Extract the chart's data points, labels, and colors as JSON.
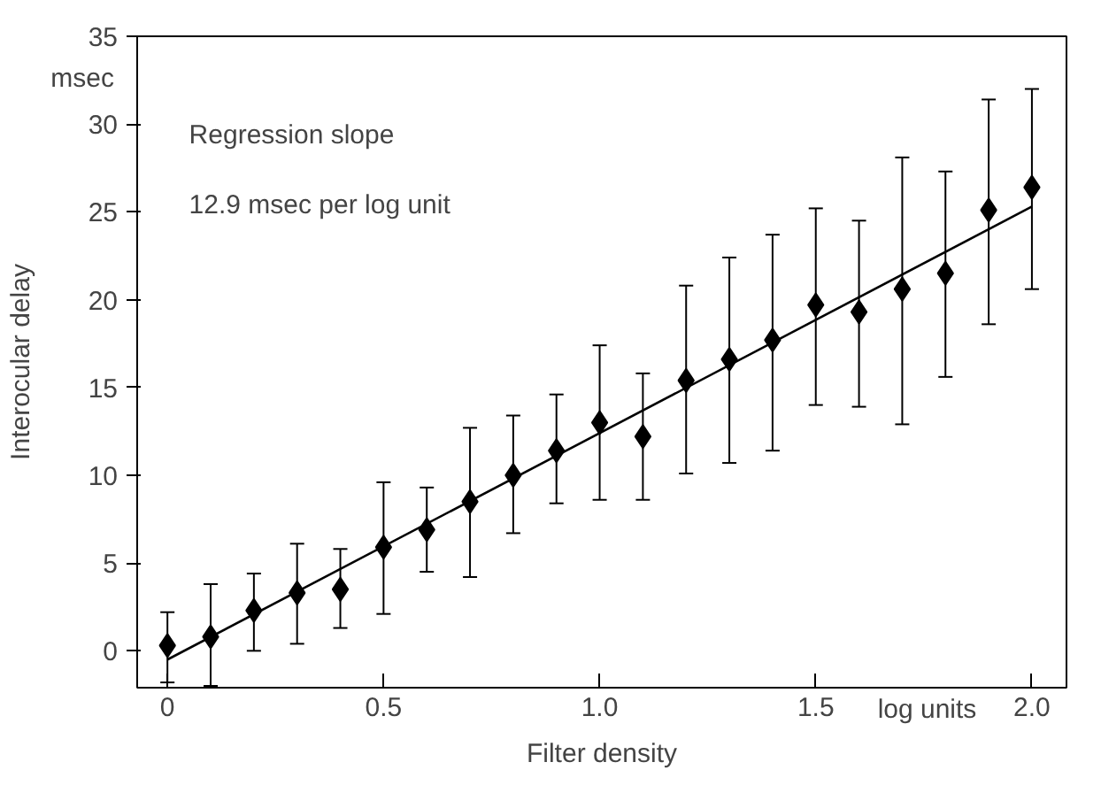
{
  "chart_data": {
    "type": "scatter",
    "xlabel": "Filter density",
    "ylabel": "Interocular delay",
    "annotations": [
      "Regression slope\n12.9 msec per log unit",
      "msec",
      "log units"
    ],
    "x": [
      0,
      0.1,
      0.2,
      0.3,
      0.4,
      0.5,
      0.6,
      0.7,
      0.8,
      0.9,
      1.0,
      1.1,
      1.2,
      1.3,
      1.4,
      1.5,
      1.6,
      1.7,
      1.8,
      1.9,
      2.0
    ],
    "series": [
      {
        "color": "#000000",
        "marker": "diamond",
        "values": [
          0.3,
          0.8,
          2.3,
          3.3,
          3.5,
          5.9,
          6.9,
          8.5,
          10.0,
          11.4,
          13.0,
          12.2,
          15.4,
          16.6,
          17.7,
          19.7,
          19.3,
          20.6,
          21.5,
          25.1,
          26.4
        ],
        "errors": [
          [
            -1.8,
            2.2
          ],
          [
            -2.0,
            3.8
          ],
          [
            0,
            4.4
          ],
          [
            0.4,
            6.1
          ],
          [
            1.3,
            5.8
          ],
          [
            2.1,
            9.6
          ],
          [
            4.5,
            9.3
          ],
          [
            4.2,
            12.7
          ],
          [
            6.7,
            13.4
          ],
          [
            8.4,
            14.6
          ],
          [
            8.6,
            17.4
          ],
          [
            8.6,
            15.8
          ],
          [
            10.1,
            20.8
          ],
          [
            10.7,
            22.4
          ],
          [
            11.4,
            23.7
          ],
          [
            14.0,
            25.2
          ],
          [
            13.9,
            24.5
          ],
          [
            12.9,
            28.1
          ],
          [
            15.6,
            27.3
          ],
          [
            18.6,
            31.4
          ],
          [
            20.6,
            32.0
          ]
        ]
      },
      {
        "type": "line",
        "color": "#000000",
        "x": [
          0,
          2.0
        ],
        "values": [
          -0.5,
          25.3
        ]
      }
    ],
    "xlim": [
      -0.07,
      2.08
    ],
    "ylim": [
      -2.1,
      35
    ],
    "xticks": [
      0,
      0.5,
      {
        "value": 1.0,
        "label": "1.0"
      },
      1.5,
      {
        "value": 2.0,
        "label": "2.0"
      }
    ],
    "yticks": [
      0,
      5,
      10,
      15,
      20,
      25,
      30,
      35
    ],
    "grid": false
  }
}
